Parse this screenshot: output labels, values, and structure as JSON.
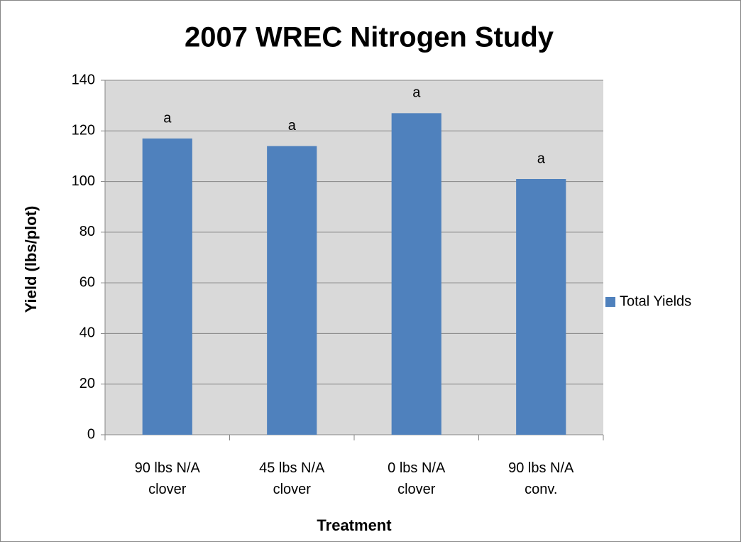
{
  "chart_data": {
    "type": "bar",
    "title": "2007 WREC Nitrogen Study",
    "x_label": "Treatment",
    "y_label": "Yield (lbs/plot)",
    "categories": [
      "90 lbs N/A\nclover",
      "45 lbs N/A\nclover",
      "0  lbs N/A\nclover",
      "90 lbs N/A\nconv."
    ],
    "series": [
      {
        "name": "Total Yields",
        "color": "#4f81bd",
        "values": [
          117,
          114,
          127,
          101
        ]
      }
    ],
    "annotations": [
      "a",
      "a",
      "a",
      "a"
    ],
    "ylim": [
      0,
      140
    ],
    "yticks": [
      0,
      20,
      40,
      60,
      80,
      100,
      120,
      140
    ],
    "grid": true,
    "legend": "right"
  }
}
